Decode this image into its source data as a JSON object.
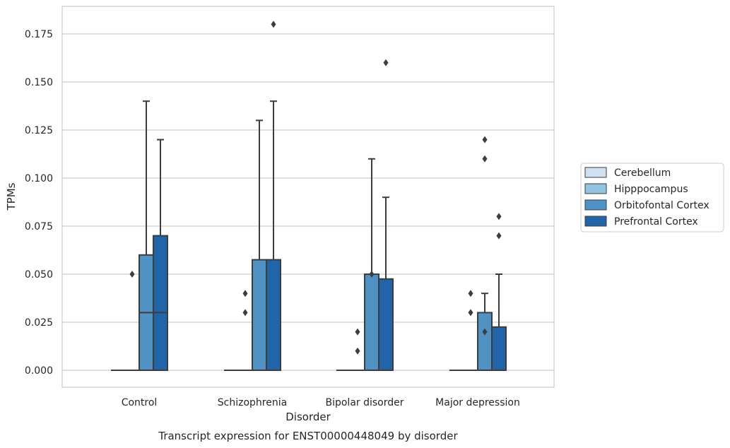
{
  "chart_data": {
    "type": "box",
    "title": "Transcript expression for ENST00000448049 by disorder",
    "xlabel": "Disorder",
    "ylabel": "TPMs",
    "ylim": [
      -0.009,
      0.189
    ],
    "yticks": [
      "0.000",
      "0.025",
      "0.050",
      "0.075",
      "0.100",
      "0.125",
      "0.150",
      "0.175"
    ],
    "grid": true,
    "legend_position": "right",
    "categories": [
      "Control",
      "Schizophrenia",
      "Bipolar disorder",
      "Major depression"
    ],
    "series": [
      {
        "name": "Cerebellum",
        "color": "#d0e1f2",
        "boxes": [
          {
            "q1": 0,
            "median": 0,
            "q3": 0,
            "whisker_low": 0,
            "whisker_high": 0,
            "outliers": []
          },
          {
            "q1": 0,
            "median": 0,
            "q3": 0,
            "whisker_low": 0,
            "whisker_high": 0,
            "outliers": []
          },
          {
            "q1": 0,
            "median": 0,
            "q3": 0,
            "whisker_low": 0,
            "whisker_high": 0,
            "outliers": []
          },
          {
            "q1": 0,
            "median": 0,
            "q3": 0,
            "whisker_low": 0,
            "whisker_high": 0,
            "outliers": []
          }
        ]
      },
      {
        "name": "Hipppocampus",
        "color": "#94c4df",
        "boxes": [
          {
            "q1": 0,
            "median": 0,
            "q3": 0,
            "whisker_low": 0,
            "whisker_high": 0,
            "outliers": [
              0.05
            ]
          },
          {
            "q1": 0,
            "median": 0,
            "q3": 0,
            "whisker_low": 0,
            "whisker_high": 0,
            "outliers": [
              0.03,
              0.04
            ]
          },
          {
            "q1": 0,
            "median": 0,
            "q3": 0,
            "whisker_low": 0,
            "whisker_high": 0,
            "outliers": [
              0.01,
              0.02
            ]
          },
          {
            "q1": 0,
            "median": 0,
            "q3": 0,
            "whisker_low": 0,
            "whisker_high": 0,
            "outliers": [
              0.03,
              0.04
            ]
          }
        ]
      },
      {
        "name": "Orbitofontal Cortex",
        "color": "#5192c4",
        "boxes": [
          {
            "q1": 0,
            "median": 0.03,
            "q3": 0.06,
            "whisker_low": 0,
            "whisker_high": 0.14,
            "outliers": []
          },
          {
            "q1": 0,
            "median": 0,
            "q3": 0.0575,
            "whisker_low": 0,
            "whisker_high": 0.13,
            "outliers": []
          },
          {
            "q1": 0,
            "median": 0,
            "q3": 0.05,
            "whisker_low": 0,
            "whisker_high": 0.11,
            "outliers": [
              0.05
            ]
          },
          {
            "q1": 0,
            "median": 0,
            "q3": 0.03,
            "whisker_low": 0,
            "whisker_high": 0.04,
            "outliers": [
              0.02,
              0.11,
              0.12
            ]
          }
        ]
      },
      {
        "name": "Prefrontal Cortex",
        "color": "#2264a8",
        "boxes": [
          {
            "q1": 0,
            "median": 0.03,
            "q3": 0.07,
            "whisker_low": 0,
            "whisker_high": 0.12,
            "outliers": []
          },
          {
            "q1": 0,
            "median": 0,
            "q3": 0.0575,
            "whisker_low": 0,
            "whisker_high": 0.14,
            "outliers": [
              0.18
            ]
          },
          {
            "q1": 0,
            "median": 0,
            "q3": 0.0475,
            "whisker_low": 0,
            "whisker_high": 0.09,
            "outliers": [
              0.16
            ]
          },
          {
            "q1": 0,
            "median": 0,
            "q3": 0.0225,
            "whisker_low": 0,
            "whisker_high": 0.05,
            "outliers": [
              0.07,
              0.08
            ]
          }
        ]
      }
    ]
  }
}
